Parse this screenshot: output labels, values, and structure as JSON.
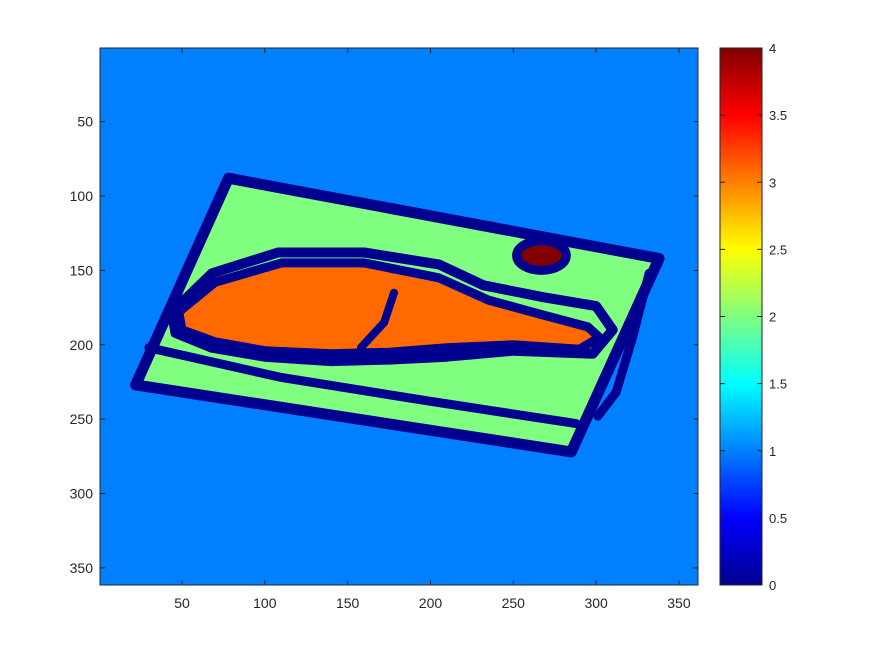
{
  "chart_data": {
    "type": "heatmap",
    "title": "",
    "xlabel": "",
    "ylabel": "",
    "xlim": [
      0.5,
      361.5
    ],
    "ylim": [
      361.5,
      0.5
    ],
    "y_reversed": true,
    "xticks": [
      50,
      100,
      150,
      200,
      250,
      300,
      350
    ],
    "yticks": [
      50,
      100,
      150,
      200,
      250,
      300,
      350
    ],
    "colormap": "jet",
    "clim": [
      0,
      4
    ],
    "colorbar": {
      "location": "right",
      "ticks": [
        0,
        0.5,
        1,
        1.5,
        2,
        2.5,
        3,
        3.5,
        4
      ]
    },
    "class_colors": {
      "0": "#00008F",
      "1": "#0080FF",
      "2": "#80FF80",
      "3": "#FF6A00",
      "4": "#800000"
    },
    "regions": [
      {
        "class": 1,
        "shape": "background"
      },
      {
        "class": 2,
        "shape": "tray",
        "corners": [
          [
            78,
            88
          ],
          [
            338,
            142
          ],
          [
            285,
            272
          ],
          [
            22,
            227
          ]
        ]
      },
      {
        "class": 3,
        "shape": "drumstick-meat",
        "outline": [
          [
            48,
            178
          ],
          [
            70,
            158
          ],
          [
            110,
            145
          ],
          [
            160,
            145
          ],
          [
            205,
            155
          ],
          [
            235,
            170
          ],
          [
            268,
            180
          ],
          [
            295,
            188
          ],
          [
            302,
            195
          ],
          [
            290,
            203
          ],
          [
            250,
            200
          ],
          [
            210,
            202
          ],
          [
            175,
            205
          ],
          [
            140,
            206
          ],
          [
            100,
            204
          ],
          [
            70,
            198
          ],
          [
            50,
            190
          ]
        ]
      },
      {
        "class": 4,
        "shape": "sauce-blob",
        "center": [
          267,
          140
        ],
        "radius": [
          15,
          10
        ]
      }
    ]
  }
}
